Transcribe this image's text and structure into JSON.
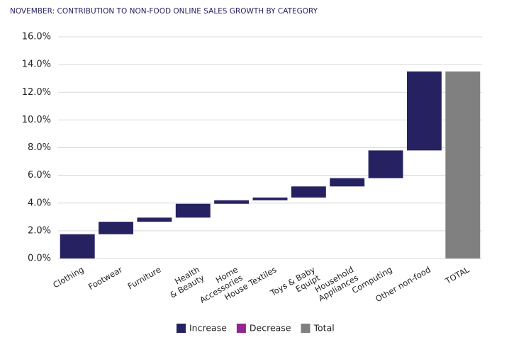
{
  "chart_data": {
    "type": "waterfall",
    "title": "NOVEMBER: CONTRIBUTION TO NON-FOOD ONLINE SALES GROWTH BY CATEGORY",
    "categories": [
      "Clothing",
      "Footwear",
      "Furniture",
      "Health\n& Beauty",
      "Home\nAccessories",
      "House Textiles",
      "Toys & Baby\nEquipt",
      "Household\nAppliances",
      "Computing",
      "Other non-food",
      "TOTAL"
    ],
    "values": [
      1.75,
      0.9,
      0.3,
      1.0,
      0.25,
      0.2,
      0.8,
      0.6,
      2.0,
      5.7,
      13.5
    ],
    "legend": [
      {
        "name": "Increase",
        "color": "#262262"
      },
      {
        "name": "Decrease",
        "color": "#92278f"
      },
      {
        "name": "Total",
        "color": "#808080"
      }
    ],
    "ylim": [
      0,
      16
    ],
    "yticks": [
      {
        "value": 0,
        "label": "0.0%"
      },
      {
        "value": 2,
        "label": "2.0%"
      },
      {
        "value": 4,
        "label": "4.0%"
      },
      {
        "value": 6,
        "label": "6.0%"
      },
      {
        "value": 8,
        "label": "8.0%"
      },
      {
        "value": 10,
        "label": "10.0%"
      },
      {
        "value": 12,
        "label": "12.0%"
      },
      {
        "value": 14,
        "label": "14.0%"
      },
      {
        "value": 16,
        "label": "16.0%"
      }
    ],
    "grid": true
  }
}
